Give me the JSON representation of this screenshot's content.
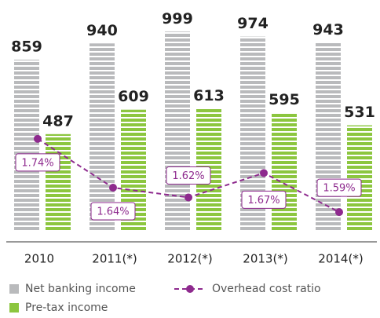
{
  "chart_data": {
    "type": "bar",
    "categories": [
      "2010",
      "2011(*)",
      "2012(*)",
      "2013(*)",
      "2014(*)"
    ],
    "series": [
      {
        "name": "Net banking income",
        "color": "#b9babc",
        "values": [
          859,
          940,
          999,
          974,
          943
        ]
      },
      {
        "name": "Pre-tax income",
        "color": "#8cc63f",
        "values": [
          487,
          609,
          613,
          595,
          531
        ]
      },
      {
        "name": "Overhead cost ratio",
        "color": "#8e2a8e",
        "type": "line",
        "axis": "y2",
        "values": [
          1.74,
          1.64,
          1.62,
          1.67,
          1.59
        ],
        "value_labels": [
          "1.74%",
          "1.64%",
          "1.62%",
          "1.67%",
          "1.59%"
        ]
      }
    ],
    "ylim": [
      0,
      1000
    ],
    "y2lim": [
      1.55,
      1.96
    ]
  }
}
